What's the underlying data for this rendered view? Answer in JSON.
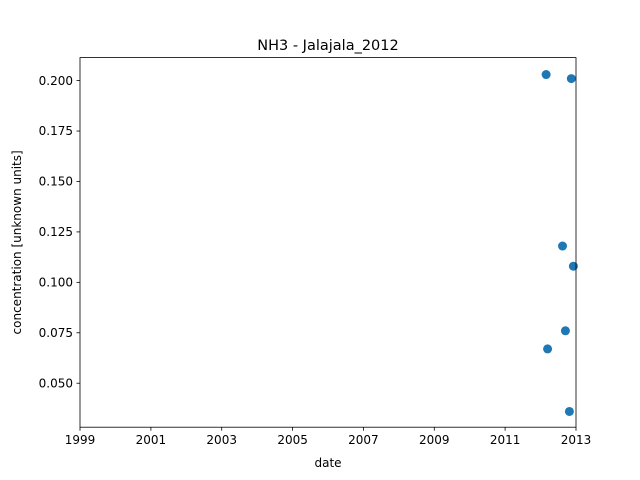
{
  "chart_data": {
    "type": "scatter",
    "title": "NH3 - Jalajala_2012",
    "xlabel": "date",
    "ylabel": "concentration [unknown units]",
    "x_axis_kind": "date",
    "xlim": [
      "1999-01-01",
      "2013-01-01"
    ],
    "ylim": [
      0.0282,
      0.2114
    ],
    "x_ticks": [
      "1999",
      "2001",
      "2003",
      "2005",
      "2007",
      "2009",
      "2011",
      "2013"
    ],
    "y_ticks": [
      "0.050",
      "0.075",
      "0.100",
      "0.125",
      "0.150",
      "0.175",
      "0.200"
    ],
    "grid": false,
    "legend": "none",
    "marker_color": "#1f77b4",
    "series": [
      {
        "points": [
          {
            "x": "2012-02-28",
            "y": 0.203
          },
          {
            "x": "2012-03-14",
            "y": 0.067
          },
          {
            "x": "2012-08-15",
            "y": 0.118
          },
          {
            "x": "2012-09-14",
            "y": 0.076
          },
          {
            "x": "2012-10-25",
            "y": 0.036
          },
          {
            "x": "2012-11-14",
            "y": 0.201
          },
          {
            "x": "2012-12-05",
            "y": 0.108
          }
        ]
      }
    ]
  }
}
